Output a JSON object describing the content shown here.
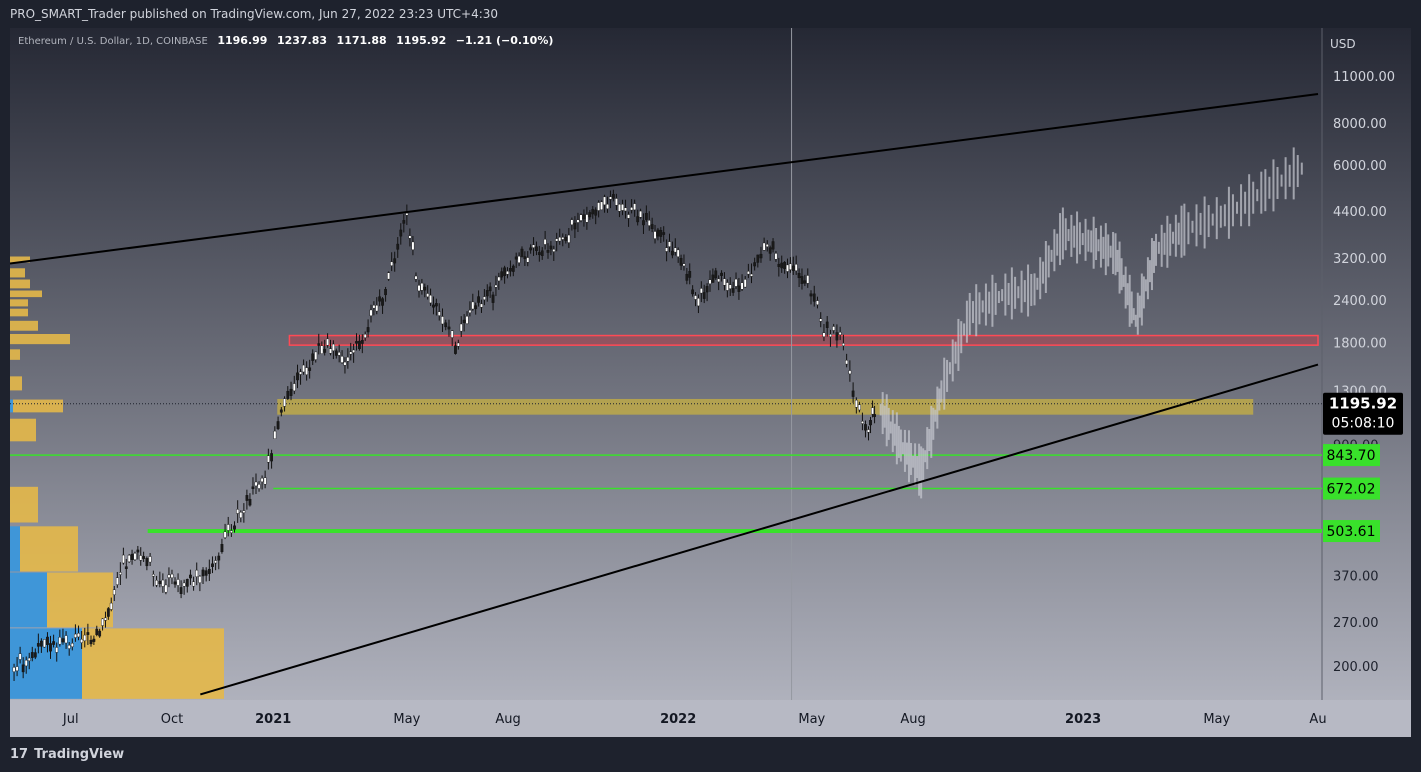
{
  "header": {
    "published_text": "PRO_SMART_Trader published on TradingView.com, Jun 27, 2022 23:23 UTC+4:30"
  },
  "footer": {
    "brand": "TradingView",
    "logo_glyph": "17"
  },
  "colors": {
    "bg_top": "#252834",
    "bg_bottom": "#b7b9c4",
    "candle": "#ffffff",
    "projection": "#c8cad2",
    "red_zone": "#e0323c",
    "yellow_zone": "#c8b040",
    "green_line": "#39e12b",
    "volume_blue": "#3f96d8",
    "volume_gold": "#e4b849",
    "axis_panel": "#b7b9c4"
  },
  "chart_data": {
    "type": "candlestick",
    "title": "Ethereum / U.S. Dollar, 1D, COINBASE",
    "symbol_short": "Ethereum / U.S. Dollar, 1D, COINBASE",
    "ohlc": {
      "open": "1196.99",
      "high": "1237.83",
      "low": "1171.88",
      "close": "1195.92",
      "change": "−1.21 (−0.10%)"
    },
    "currency": "USD",
    "y_scale": "log",
    "y_ticks": [
      "11000.00",
      "8000.00",
      "6000.00",
      "4400.00",
      "3200.00",
      "2400.00",
      "1800.00",
      "1300.00",
      "900.00",
      "370.00",
      "270.00",
      "200.00"
    ],
    "y_tick_values": [
      11000,
      8000,
      6000,
      4400,
      3200,
      2400,
      1800,
      1300,
      900,
      370,
      270,
      200
    ],
    "x_ticks": [
      {
        "label": "Jul",
        "t": 2020.5,
        "bold": false
      },
      {
        "label": "Oct",
        "t": 2020.75,
        "bold": false
      },
      {
        "label": "2021",
        "t": 2021.0,
        "bold": true
      },
      {
        "label": "May",
        "t": 2021.33,
        "bold": false
      },
      {
        "label": "Aug",
        "t": 2021.58,
        "bold": false
      },
      {
        "label": "2022",
        "t": 2022.0,
        "bold": true
      },
      {
        "label": "May",
        "t": 2022.33,
        "bold": false
      },
      {
        "label": "Aug",
        "t": 2022.58,
        "bold": false
      },
      {
        "label": "2023",
        "t": 2023.0,
        "bold": true
      },
      {
        "label": "May",
        "t": 2023.33,
        "bold": false
      },
      {
        "label": "Au",
        "t": 2023.58,
        "bold": false
      }
    ],
    "price_series": [
      [
        2020.36,
        200
      ],
      [
        2020.45,
        235
      ],
      [
        2020.55,
        240
      ],
      [
        2020.6,
        300
      ],
      [
        2020.63,
        400
      ],
      [
        2020.68,
        430
      ],
      [
        2020.72,
        360
      ],
      [
        2020.78,
        350
      ],
      [
        2020.85,
        400
      ],
      [
        2020.92,
        580
      ],
      [
        2020.98,
        730
      ],
      [
        2021.02,
        1100
      ],
      [
        2021.06,
        1400
      ],
      [
        2021.12,
        1800
      ],
      [
        2021.17,
        1600
      ],
      [
        2021.22,
        1900
      ],
      [
        2021.27,
        2500
      ],
      [
        2021.33,
        4300
      ],
      [
        2021.36,
        2600
      ],
      [
        2021.41,
        2300
      ],
      [
        2021.45,
        1800
      ],
      [
        2021.5,
        2300
      ],
      [
        2021.55,
        2600
      ],
      [
        2021.6,
        3200
      ],
      [
        2021.65,
        3400
      ],
      [
        2021.7,
        3500
      ],
      [
        2021.76,
        4200
      ],
      [
        2021.84,
        4700
      ],
      [
        2021.9,
        4300
      ],
      [
        2021.95,
        3900
      ],
      [
        2022.0,
        3200
      ],
      [
        2022.05,
        2500
      ],
      [
        2022.1,
        2900
      ],
      [
        2022.15,
        2600
      ],
      [
        2022.22,
        3500
      ],
      [
        2022.27,
        3000
      ],
      [
        2022.32,
        2800
      ],
      [
        2022.36,
        2000
      ],
      [
        2022.4,
        1900
      ],
      [
        2022.44,
        1200
      ],
      [
        2022.47,
        1000
      ],
      [
        2022.49,
        1195.92
      ]
    ],
    "projection_series": [
      [
        2022.5,
        1150
      ],
      [
        2022.55,
        900
      ],
      [
        2022.6,
        750
      ],
      [
        2022.65,
        1300
      ],
      [
        2022.72,
        2200
      ],
      [
        2022.8,
        2500
      ],
      [
        2022.88,
        2600
      ],
      [
        2022.95,
        3800
      ],
      [
        2023.02,
        3600
      ],
      [
        2023.08,
        3300
      ],
      [
        2023.13,
        2100
      ],
      [
        2023.18,
        3400
      ],
      [
        2023.25,
        3900
      ],
      [
        2023.35,
        4300
      ],
      [
        2023.45,
        5100
      ],
      [
        2023.55,
        6000
      ]
    ],
    "trendlines": [
      {
        "name": "upper-trendline",
        "from": [
          2020.35,
          3100
        ],
        "to": [
          2023.58,
          9800
        ]
      },
      {
        "name": "lower-trendline",
        "from": [
          2020.82,
          166
        ],
        "to": [
          2023.58,
          1560
        ]
      }
    ],
    "zones": [
      {
        "name": "red-zone",
        "t_from": 2021.04,
        "t_to": 2023.58,
        "low": 1780,
        "high": 1900
      },
      {
        "name": "yellow-zone",
        "t_from": 2021.01,
        "t_to": 2023.42,
        "low": 1110,
        "high": 1235
      }
    ],
    "levels": [
      {
        "label": "843.70",
        "value": 843.7,
        "t_from": 2020.35,
        "width": 1.5
      },
      {
        "label": "672.02",
        "value": 672.02,
        "t_from": 2021.0,
        "width": 1.5
      },
      {
        "label": "503.61",
        "value": 503.61,
        "t_from": 2020.69,
        "width": 4
      }
    ],
    "last_price": {
      "value": 1195.92,
      "label": "1195.92",
      "countdown": "05:08:10"
    },
    "cursor_t": 2022.28,
    "volume_profile": [
      {
        "low": 3100,
        "high": 3250,
        "blue": 0,
        "gold": 20
      },
      {
        "low": 2800,
        "high": 3000,
        "blue": 0,
        "gold": 15
      },
      {
        "low": 2600,
        "high": 2780,
        "blue": 0,
        "gold": 20
      },
      {
        "low": 2450,
        "high": 2580,
        "blue": 0,
        "gold": 32
      },
      {
        "low": 2300,
        "high": 2430,
        "blue": 0,
        "gold": 18
      },
      {
        "low": 2150,
        "high": 2280,
        "blue": 0,
        "gold": 18
      },
      {
        "low": 1950,
        "high": 2100,
        "blue": 0,
        "gold": 28
      },
      {
        "low": 1780,
        "high": 1920,
        "blue": 0,
        "gold": 60
      },
      {
        "low": 1600,
        "high": 1730,
        "blue": 0,
        "gold": 10
      },
      {
        "low": 1300,
        "high": 1440,
        "blue": 0,
        "gold": 12
      },
      {
        "low": 1120,
        "high": 1230,
        "blue": 3,
        "gold": 50
      },
      {
        "low": 920,
        "high": 1080,
        "blue": 0,
        "gold": 26
      },
      {
        "low": 530,
        "high": 680,
        "blue": 0,
        "gold": 28
      },
      {
        "low": 380,
        "high": 520,
        "blue": 10,
        "gold": 58
      },
      {
        "low": 260,
        "high": 380,
        "blue": 37,
        "gold": 66
      },
      {
        "low": 160,
        "high": 260,
        "blue": 72,
        "gold": 142
      }
    ]
  }
}
